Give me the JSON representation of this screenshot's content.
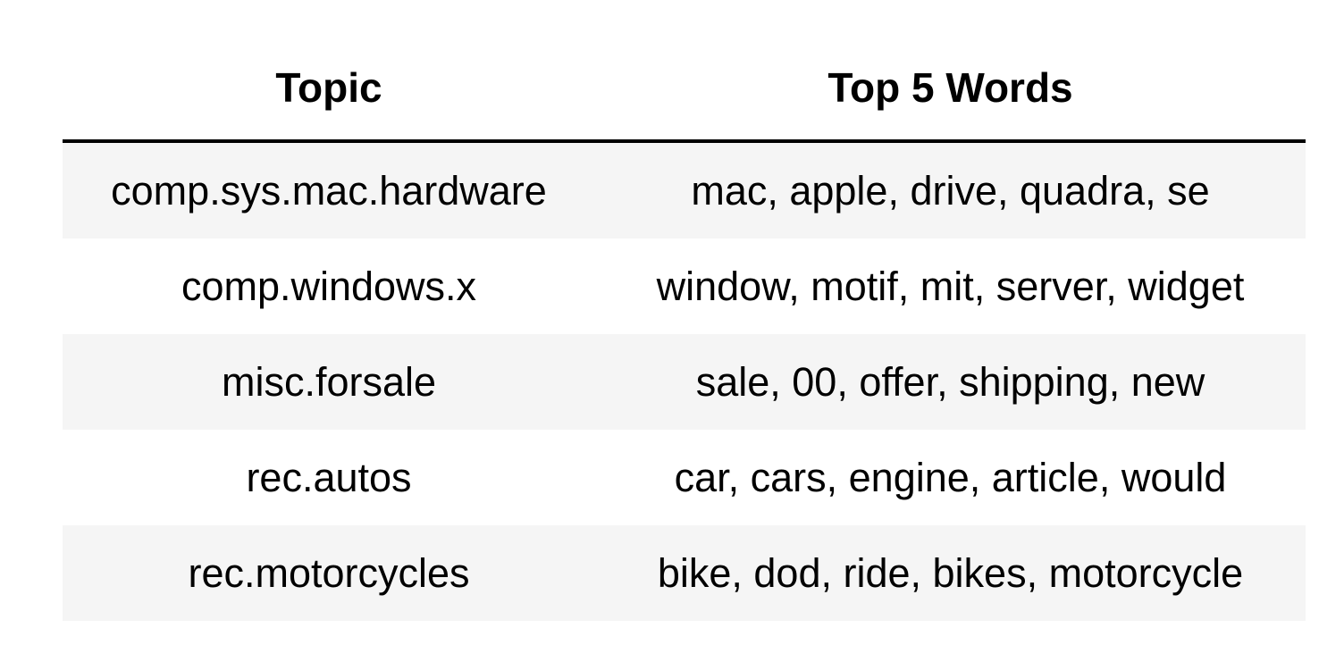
{
  "table": {
    "headers": {
      "topic": "Topic",
      "words": "Top 5 Words"
    },
    "rows": [
      {
        "topic": "comp.sys.mac.hardware",
        "words": "mac, apple, drive, quadra, se"
      },
      {
        "topic": "comp.windows.x",
        "words": "window, motif, mit, server, widget"
      },
      {
        "topic": "misc.forsale",
        "words": "sale, 00, offer, shipping, new"
      },
      {
        "topic": "rec.autos",
        "words": "car, cars, engine, article, would"
      },
      {
        "topic": "rec.motorcycles",
        "words": "bike, dod, ride, bikes, motorcycle"
      }
    ]
  },
  "colors": {
    "stripe": "#f5f5f5",
    "header_rule": "#000000"
  }
}
